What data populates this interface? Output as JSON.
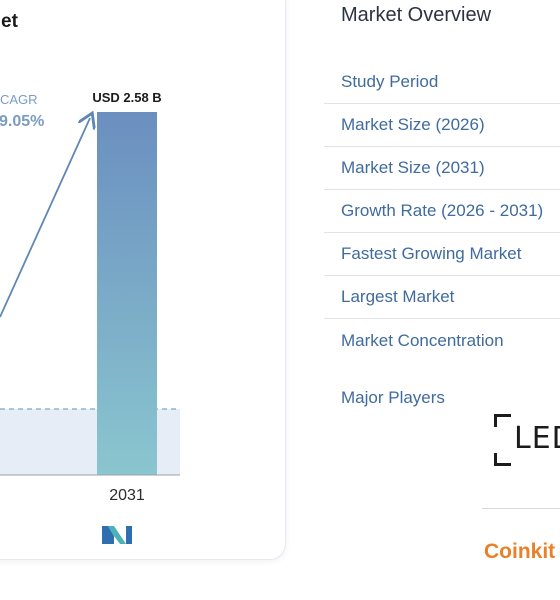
{
  "chart_card": {
    "title_partial": "et",
    "cagr_label_partial": "CAGR",
    "cagr_value_partial": "9.05%",
    "logo_icon": "mordor-intelligence-logo",
    "colors": {
      "bar_top": "#6b8fc0",
      "bar_bottom": "#8ac6cf",
      "arrow": "#5f86b5",
      "dashed": "#8fb5c8",
      "baseline_fill": "#e7edf7"
    }
  },
  "chart_data": {
    "type": "bar",
    "categories": [
      "2031"
    ],
    "series": [
      {
        "values": [
          2.58
        ]
      }
    ],
    "data_labels": [
      "USD 2.58 B"
    ]
  },
  "overview": {
    "title": "Market Overview",
    "rows": [
      "Study Period",
      "Market Size (2026)",
      "Market Size (2031)",
      "Growth Rate (2026 - 2031)",
      "Fastest Growing Market",
      "Largest Market",
      "Market Concentration"
    ],
    "players_label": "Major Players",
    "logos": [
      "LED",
      "Coinkit"
    ]
  }
}
